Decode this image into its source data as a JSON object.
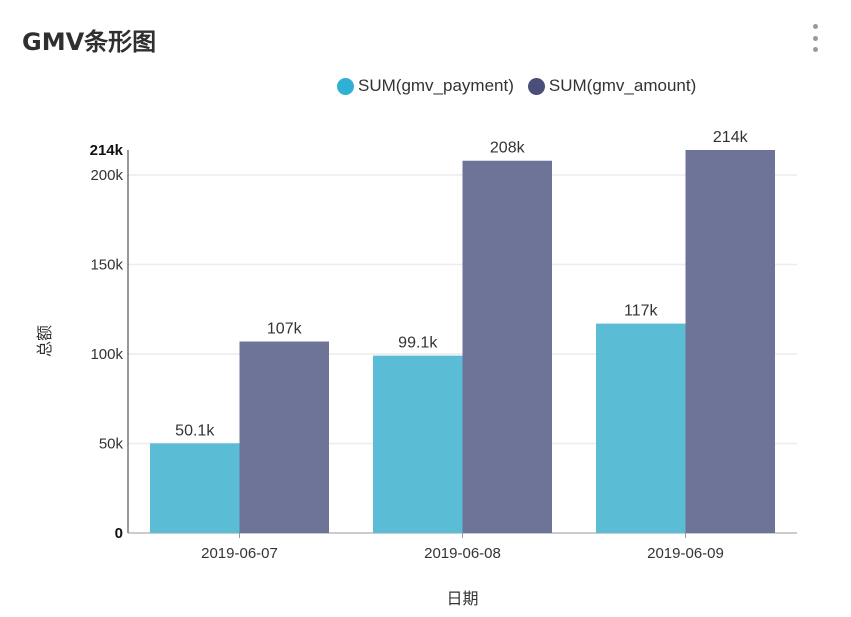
{
  "card": {
    "title": "GMV条形图",
    "menu_icon": "more-vertical-icon"
  },
  "chart_data": {
    "type": "bar",
    "title": "GMV条形图",
    "xlabel": "日期",
    "ylabel": "总额",
    "categories": [
      "2019-06-07",
      "2019-06-08",
      "2019-06-09"
    ],
    "series": [
      {
        "name": "SUM(gmv_payment)",
        "color": "#5bbcd6",
        "legend_color": "#2fb1d6",
        "values": [
          50100,
          99100,
          117000
        ],
        "labels": [
          "50.1k",
          "99.1k",
          "117k"
        ]
      },
      {
        "name": "SUM(gmv_amount)",
        "color": "#6e7498",
        "legend_color": "#4a4f7a",
        "values": [
          107000,
          208000,
          214000
        ],
        "labels": [
          "107k",
          "208k",
          "214k"
        ]
      }
    ],
    "ylim": [
      0,
      214000
    ],
    "yticks": [
      {
        "value": 0,
        "label": "0",
        "bold": true
      },
      {
        "value": 50000,
        "label": "50k",
        "bold": false
      },
      {
        "value": 100000,
        "label": "100k",
        "bold": false
      },
      {
        "value": 150000,
        "label": "150k",
        "bold": false
      },
      {
        "value": 200000,
        "label": "200k",
        "bold": false
      },
      {
        "value": 214000,
        "label": "214k",
        "bold": true
      }
    ],
    "grid": true,
    "legend_position": "top-right"
  }
}
